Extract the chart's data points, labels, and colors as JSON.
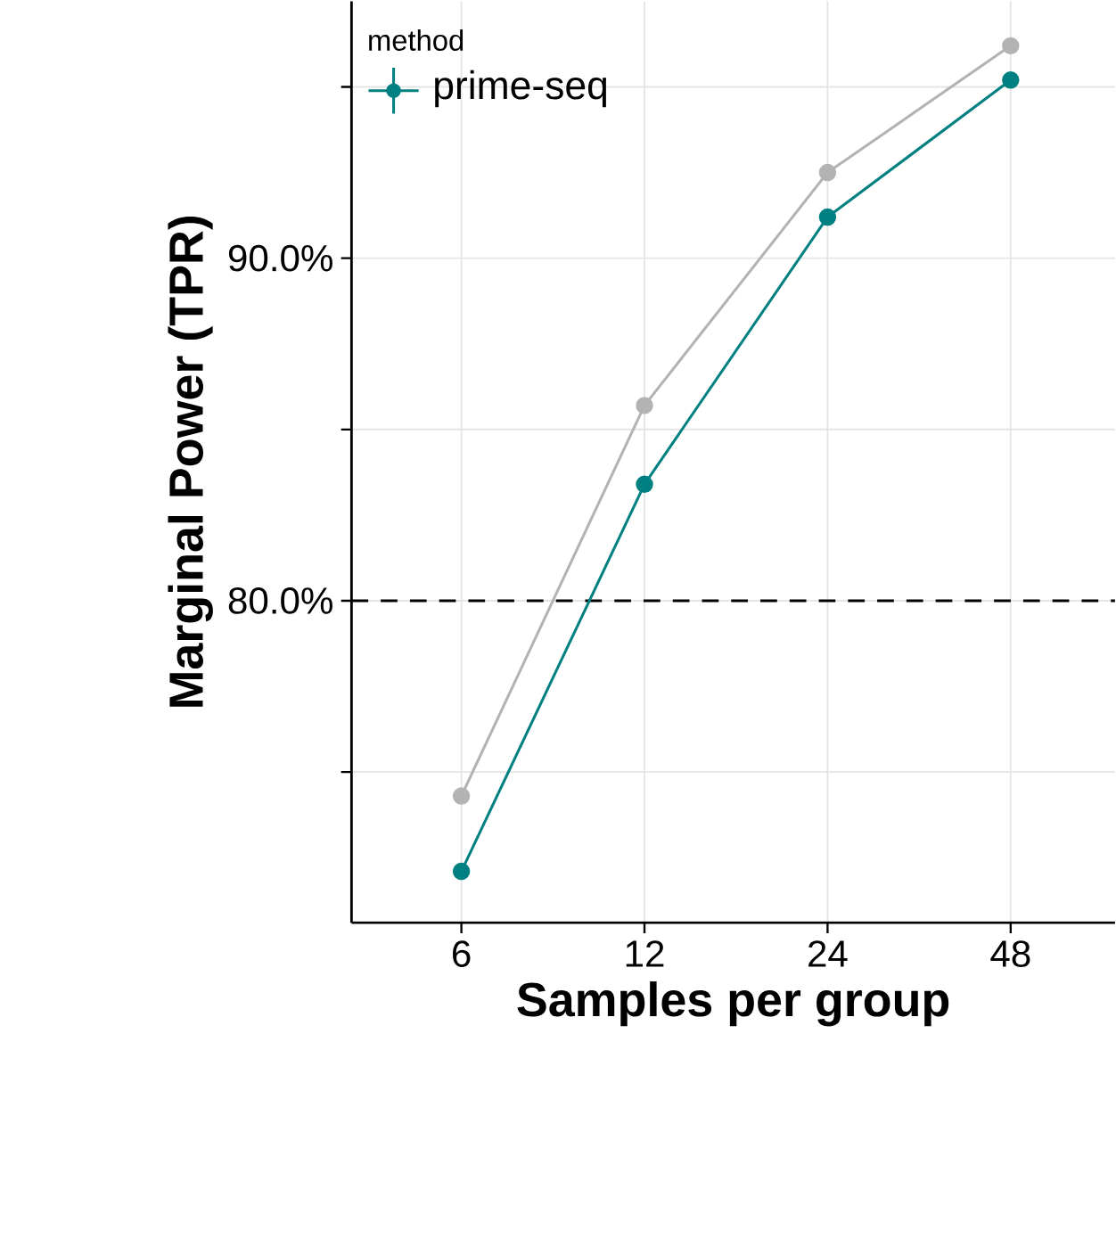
{
  "chart_data": {
    "type": "line",
    "xlabel": "Samples per group",
    "ylabel": "Marginal Power (TPR)",
    "legend_title": "method",
    "categories": [
      "6",
      "12",
      "24",
      "48"
    ],
    "series": [
      {
        "name": "prime-seq",
        "color": "#008080",
        "values": [
          72.1,
          83.4,
          91.2,
          95.2
        ]
      },
      {
        "color": "#b3b3b3",
        "values": [
          74.3,
          85.7,
          92.5,
          96.2
        ]
      }
    ],
    "ylim": [
      70.6,
      97.5
    ],
    "yticks": [
      {
        "value": 75,
        "label": null
      },
      {
        "value": 80,
        "label": "80.0%"
      },
      {
        "value": 85,
        "label": null
      },
      {
        "value": 90,
        "label": "90.0%"
      },
      {
        "value": 95,
        "label": null
      }
    ],
    "ref_lines": [
      {
        "axis": "y",
        "value": 80,
        "color": "#000000",
        "line_style": "dashed"
      }
    ],
    "grid": true,
    "legend": "top left",
    "marker": "circle",
    "line_style": "solid"
  }
}
